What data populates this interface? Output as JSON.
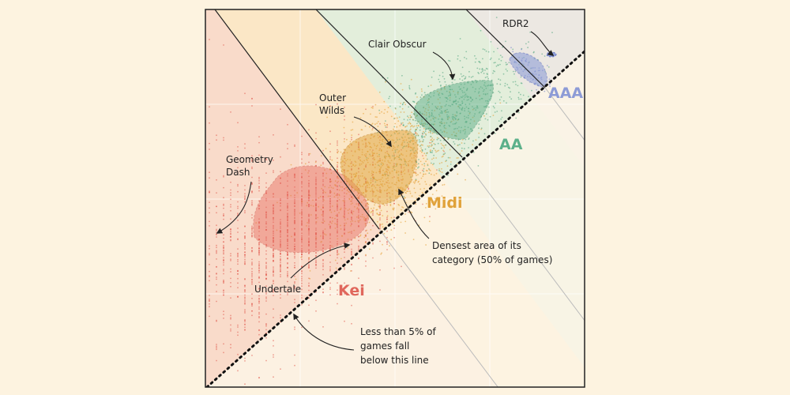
{
  "annotations": {
    "rdr2": "RDR2",
    "clair_obscur": "Clair Obscur",
    "outer_wilds_1": "Outer",
    "outer_wilds_2": "Wilds",
    "geometry_dash_1": "Geometry",
    "geometry_dash_2": "Dash",
    "undertale": "Undertale",
    "densest_1": "Densest area of its",
    "densest_2": "category (50% of games)",
    "below_1": "Less than 5% of",
    "below_2": "games fall",
    "below_3": "below this line"
  },
  "categories": {
    "aaa": "AAA",
    "aa": "AA",
    "midi": "Midi",
    "kei": "Kei"
  }
}
